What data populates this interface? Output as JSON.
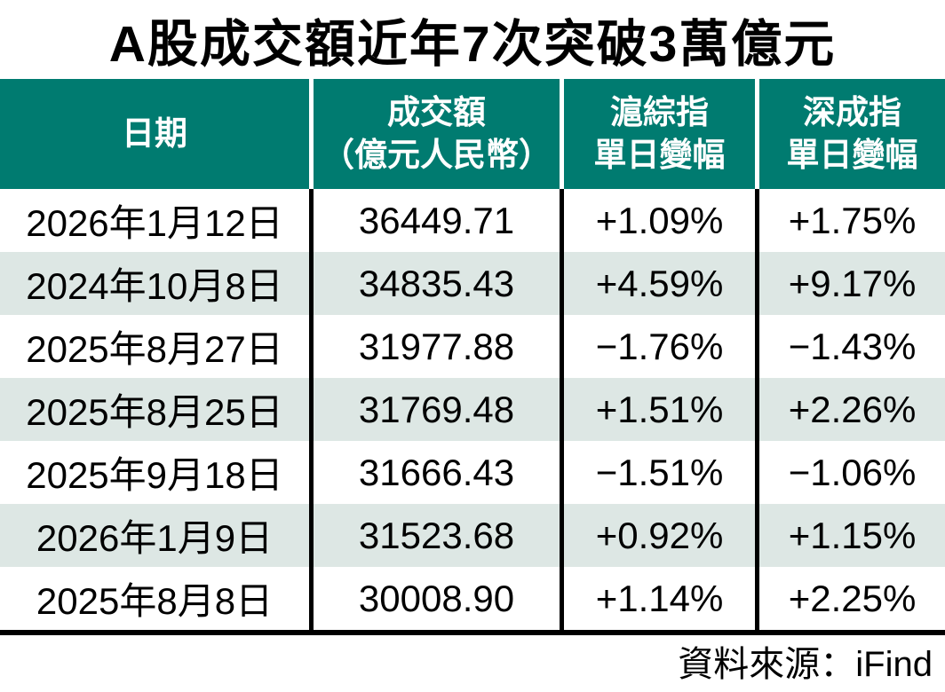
{
  "title": "A股成交額近年7次突破3萬億元",
  "source": "資料來源：iFind",
  "colors": {
    "header_bg": "#007b70",
    "header_text": "#ffffff",
    "row_alt_bg": "#dde7e4",
    "body_text": "#000000"
  },
  "table": {
    "header": {
      "date": "日期",
      "turnover_line1": "成交額",
      "turnover_line2": "（億元人民幣）",
      "sse_line1": "滬綜指",
      "sse_line2": "單日變幅",
      "szse_line1": "深成指",
      "szse_line2": "單日變幅"
    },
    "rows": [
      {
        "date": "2026年1月12日",
        "turnover": "36449.71",
        "sse": "+1.09%",
        "szse": "+1.75%"
      },
      {
        "date": "2024年10月8日",
        "turnover": "34835.43",
        "sse": "+4.59%",
        "szse": "+9.17%"
      },
      {
        "date": "2025年8月27日",
        "turnover": "31977.88",
        "sse": "−1.76%",
        "szse": "−1.43%"
      },
      {
        "date": "2025年8月25日",
        "turnover": "31769.48",
        "sse": "+1.51%",
        "szse": "+2.26%"
      },
      {
        "date": "2025年9月18日",
        "turnover": "31666.43",
        "sse": "−1.51%",
        "szse": "−1.06%"
      },
      {
        "date": "2026年1月9日",
        "turnover": "31523.68",
        "sse": "+0.92%",
        "szse": "+1.15%"
      },
      {
        "date": "2025年8月8日",
        "turnover": "30008.90",
        "sse": "+1.14%",
        "szse": "+2.25%"
      }
    ]
  },
  "chart_data": {
    "type": "table",
    "title": "A股成交額近年7次突破3萬億元",
    "columns": [
      "日期",
      "成交額（億元人民幣）",
      "滬綜指單日變幅",
      "深成指單日變幅"
    ],
    "rows": [
      [
        "2026年1月12日",
        36449.71,
        1.09,
        1.75
      ],
      [
        "2024年10月8日",
        34835.43,
        4.59,
        9.17
      ],
      [
        "2025年8月27日",
        31977.88,
        -1.76,
        -1.43
      ],
      [
        "2025年8月25日",
        31769.48,
        1.51,
        2.26
      ],
      [
        "2025年9月18日",
        31666.43,
        -1.51,
        -1.06
      ],
      [
        "2026年1月9日",
        31523.68,
        0.92,
        1.15
      ],
      [
        "2025年8月8日",
        30008.9,
        1.14,
        2.25
      ]
    ],
    "units": {
      "turnover": "億元人民幣",
      "changes": "%"
    },
    "source": "資料來源：iFind",
    "layout_hints": {
      "header_bg": "#007b70",
      "alternating_rows": true,
      "row_alt_bg": "#dde7e4"
    }
  }
}
